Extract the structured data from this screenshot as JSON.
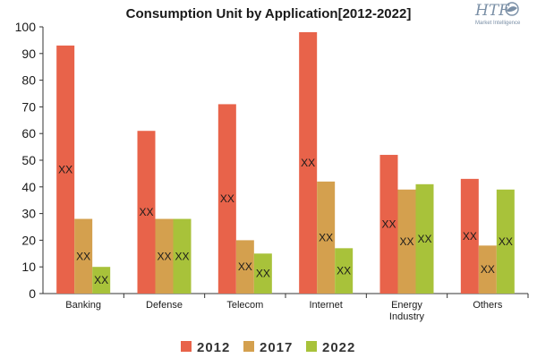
{
  "chart_data": {
    "type": "bar",
    "title": "Consumption Unit by  Application[2012-2022]",
    "categories": [
      "Banking",
      "Defense",
      "Telecom",
      "Internet",
      "Energy\nIndustry",
      "Others"
    ],
    "series": [
      {
        "name": "2012",
        "values": [
          93,
          61,
          71,
          98,
          52,
          43
        ],
        "color": "#e8634a"
      },
      {
        "name": "2017",
        "values": [
          28,
          28,
          20,
          42,
          39,
          18
        ],
        "color": "#d4a04e"
      },
      {
        "name": "2022",
        "values": [
          10,
          28,
          15,
          17,
          41,
          39
        ],
        "color": "#a8c23a"
      }
    ],
    "data_label": "XX",
    "ylim": [
      0,
      100
    ],
    "yticks": [
      0,
      10,
      20,
      30,
      40,
      50,
      60,
      70,
      80,
      90,
      100
    ],
    "xlabel": "",
    "ylabel": "",
    "grid": false,
    "legend_position": "bottom"
  },
  "logo": {
    "text": "HTF",
    "subtext": "Market Intelligence"
  }
}
